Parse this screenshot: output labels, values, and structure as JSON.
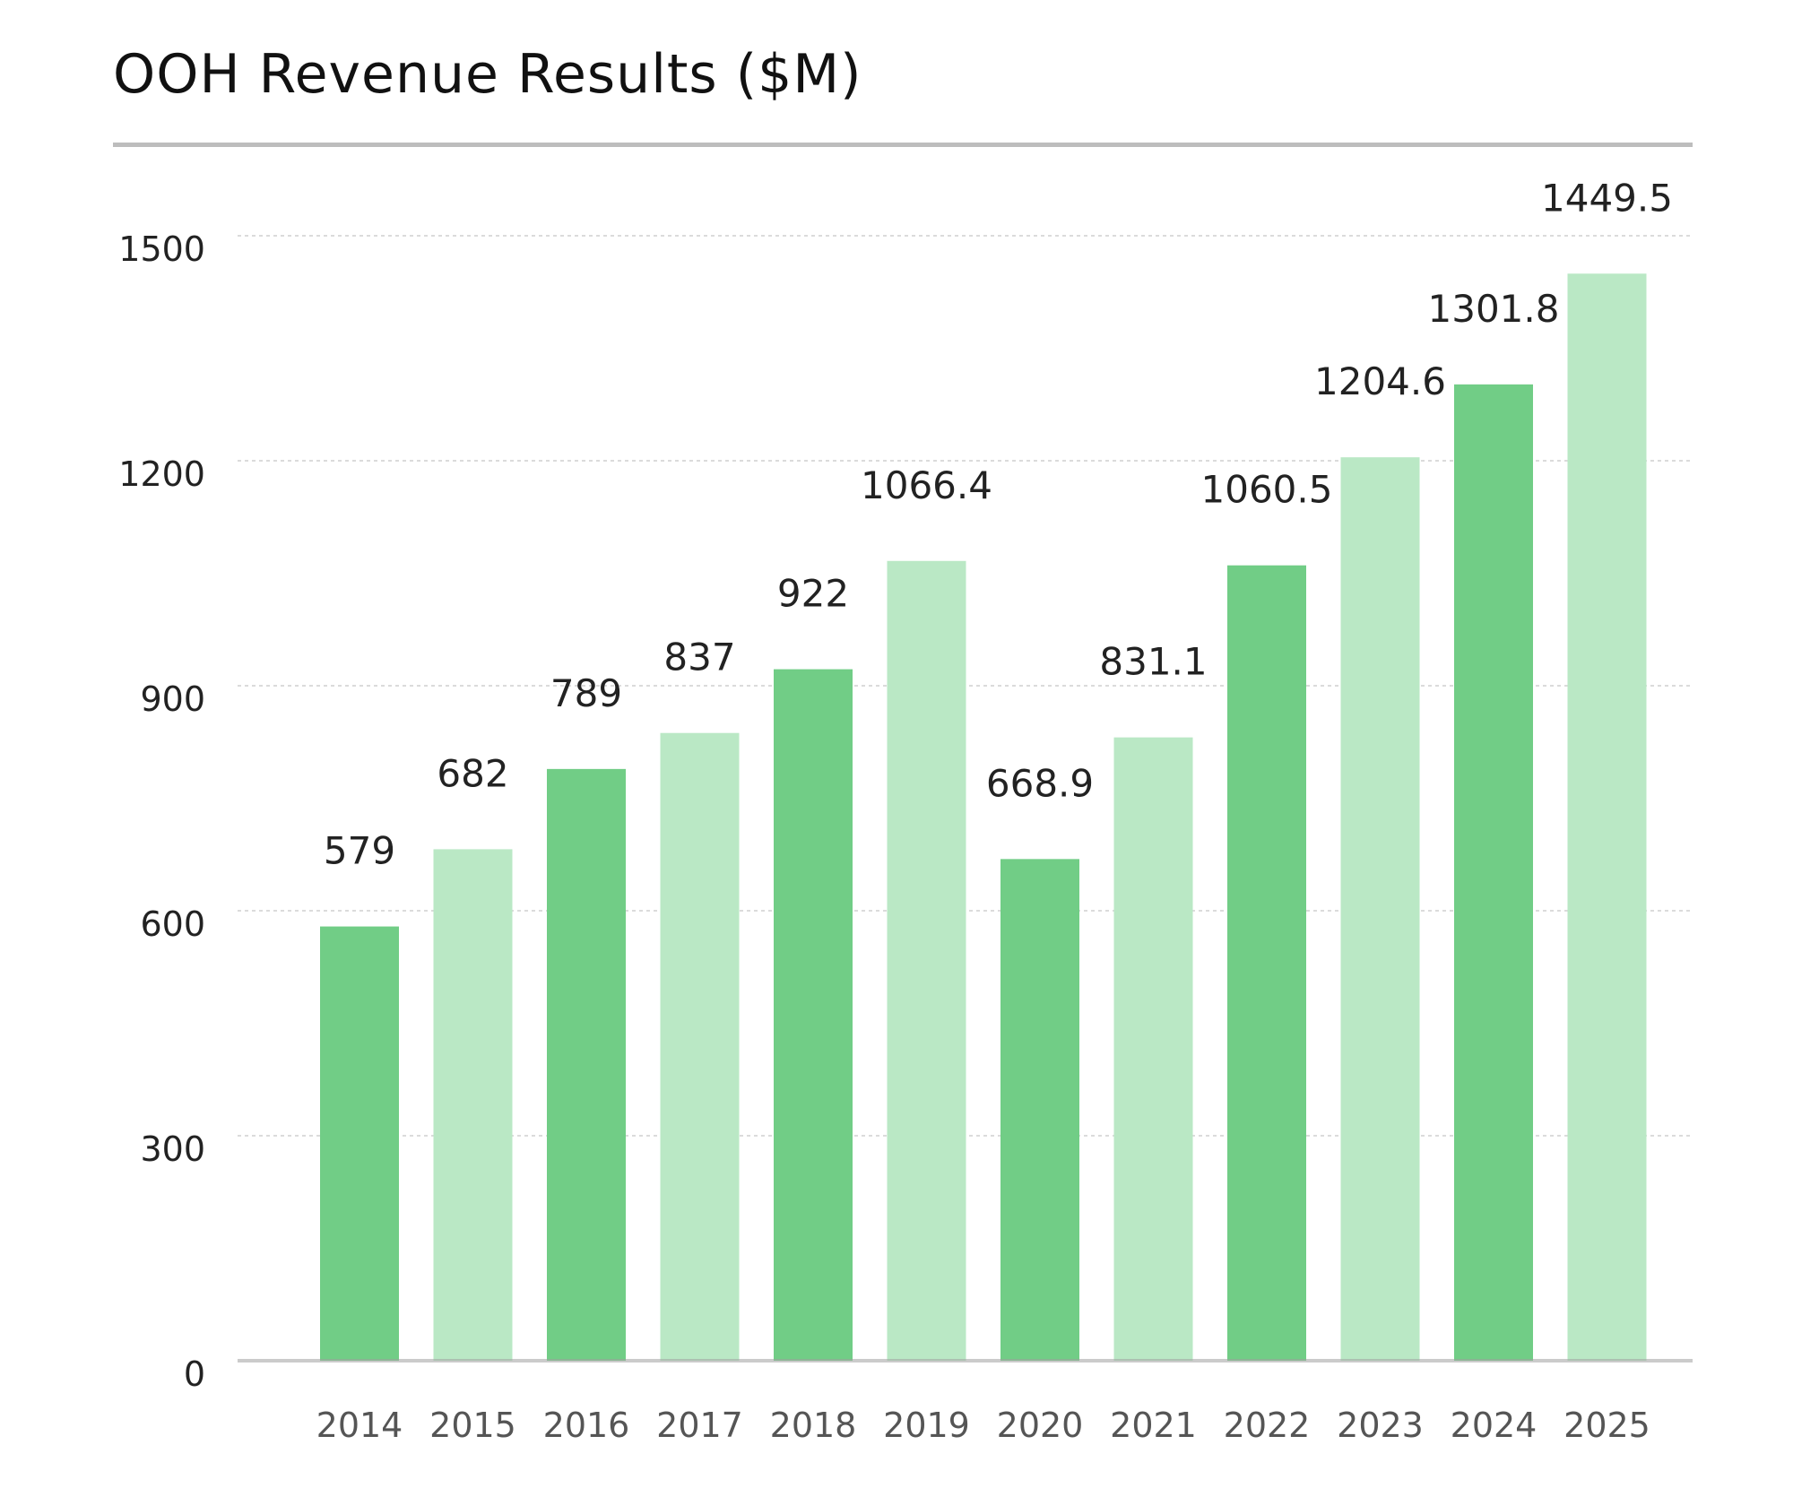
{
  "chart_data": {
    "type": "bar",
    "title": "OOH Revenue Results ($M)",
    "xlabel": "",
    "ylabel": "",
    "categories": [
      "2014",
      "2015",
      "2016",
      "2017",
      "2018",
      "2019",
      "2020",
      "2021",
      "2022",
      "2023",
      "2024",
      "2025"
    ],
    "values": [
      579,
      682,
      789,
      837,
      922,
      1066.4,
      668.9,
      831.1,
      1060.5,
      1204.6,
      1301.8,
      1449.5
    ],
    "data_labels": [
      "579",
      "682",
      "789",
      "837",
      "922",
      "1066.4",
      "668.9",
      "831.1",
      "1060.5",
      "1204.6",
      "1301.8",
      "1449.5"
    ],
    "ylim": [
      0,
      1500
    ],
    "yticks": [
      0,
      300,
      600,
      900,
      1200,
      1500
    ],
    "grid": true,
    "legend": "none",
    "colors": [
      "#71cd86",
      "#bae8c5"
    ]
  }
}
